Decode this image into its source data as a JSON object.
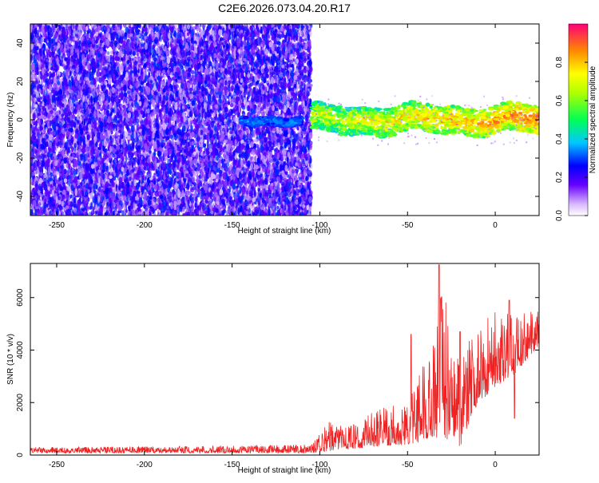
{
  "title": "C2E6.2026.073.04.20.R17",
  "chart_data": [
    {
      "type": "heatmap",
      "xlabel": "Height of straight line (km)",
      "ylabel": "Frequency (Hz)",
      "xlim": [
        -265,
        25
      ],
      "ylim": [
        -50,
        50
      ],
      "x_ticks": [
        -250,
        -200,
        -150,
        -100,
        -50,
        0
      ],
      "y_ticks": [
        -40,
        -20,
        0,
        20,
        40
      ],
      "colorbar": {
        "label": "Normalized spectral amplitude",
        "range": [
          0,
          1
        ],
        "ticks": [
          0.0,
          0.2,
          0.4,
          0.6,
          0.8
        ]
      },
      "regions": [
        {
          "x": [
            -265,
            -105
          ],
          "freq": [
            -50,
            50
          ],
          "amplitude": [
            0.05,
            0.3
          ]
        },
        {
          "x": [
            -145,
            -110
          ],
          "freq": [
            -3,
            3
          ],
          "amplitude": [
            0.2,
            0.45
          ]
        },
        {
          "x": [
            -105,
            25
          ],
          "freq": [
            -8,
            8
          ],
          "amplitude": [
            0.3,
            0.95
          ]
        }
      ]
    },
    {
      "type": "line",
      "xlabel": "Height of straight line (km)",
      "ylabel": "SNR (10 * v/v)",
      "xlim": [
        -265,
        25
      ],
      "ylim": [
        0,
        7300
      ],
      "x_ticks": [
        -250,
        -200,
        -150,
        -100,
        -50,
        0
      ],
      "y_ticks": [
        0,
        2000,
        4000,
        6000
      ],
      "color": "#ee2222",
      "envelope": {
        "x": [
          -265,
          -150,
          -105,
          -100,
          -95,
          -90,
          -80,
          -70,
          -60,
          -50,
          -45,
          -40,
          -35,
          -30,
          -25,
          -20,
          -15,
          -10,
          -5,
          0,
          5,
          10,
          15,
          20,
          25
        ],
        "low": [
          80,
          80,
          80,
          100,
          150,
          200,
          250,
          300,
          350,
          400,
          450,
          500,
          700,
          400,
          700,
          300,
          1200,
          1800,
          2200,
          2600,
          2800,
          3000,
          3400,
          3800,
          4200
        ],
        "high": [
          300,
          350,
          400,
          800,
          1300,
          1100,
          1200,
          1700,
          1900,
          2200,
          3200,
          3500,
          4300,
          7200,
          4400,
          3700,
          4500,
          5200,
          5200,
          5600,
          5600,
          5500,
          5400,
          5500,
          5600
        ]
      },
      "spikes": [
        {
          "x": -32,
          "y": 7250
        },
        {
          "x": -31,
          "y": 6000
        },
        {
          "x": -48,
          "y": 4600
        },
        {
          "x": -20,
          "y": 4700
        },
        {
          "x": 8,
          "y": 5900
        },
        {
          "x": 11,
          "y": 1400
        }
      ]
    }
  ]
}
